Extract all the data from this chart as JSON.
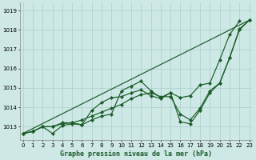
{
  "title": "Graphe pression niveau de la mer (hPa)",
  "xlabel_ticks": [
    0,
    1,
    2,
    3,
    4,
    5,
    6,
    7,
    8,
    9,
    10,
    11,
    12,
    13,
    14,
    15,
    16,
    17,
    18,
    19,
    20,
    21,
    22,
    23
  ],
  "yticks": [
    1013,
    1014,
    1015,
    1016,
    1017,
    1018,
    1019
  ],
  "ylim": [
    1012.3,
    1019.4
  ],
  "xlim": [
    -0.3,
    23.3
  ],
  "bg_color": "#cde8e5",
  "grid_color": "#aacfcc",
  "line_color": "#1a5c28",
  "line1_x": [
    0,
    1,
    2,
    3,
    4,
    5,
    6,
    7,
    8,
    9,
    10,
    11,
    12,
    13,
    14,
    15,
    16,
    17,
    18,
    19,
    20,
    21,
    22,
    23
  ],
  "line1_y": [
    1012.65,
    1012.75,
    1013.0,
    1012.65,
    1013.05,
    1013.15,
    1013.1,
    1013.35,
    1013.55,
    1013.65,
    1014.85,
    1015.1,
    1015.35,
    1014.85,
    1014.5,
    1014.75,
    1013.25,
    1013.15,
    1013.85,
    1014.75,
    1015.25,
    1016.55,
    1018.05,
    1018.5
  ],
  "line2_x": [
    0,
    1,
    2,
    3,
    4,
    5,
    6,
    7,
    8,
    9,
    10,
    11,
    12,
    13,
    14,
    15,
    16,
    17,
    18,
    19,
    20,
    21,
    22
  ],
  "line2_y": [
    1012.65,
    1012.75,
    1013.0,
    1013.0,
    1013.2,
    1013.2,
    1013.1,
    1013.85,
    1014.25,
    1014.5,
    1014.55,
    1014.75,
    1014.9,
    1014.6,
    1014.45,
    1014.75,
    1014.5,
    1014.6,
    1015.15,
    1015.25,
    1016.45,
    1017.75,
    1018.45
  ],
  "line3_x": [
    0,
    1,
    2,
    3,
    4,
    5,
    6,
    7,
    8,
    9,
    10,
    11,
    12,
    13,
    14,
    15,
    16,
    17,
    18,
    19,
    20,
    21,
    22,
    23
  ],
  "line3_y": [
    1012.65,
    1012.75,
    1013.0,
    1013.0,
    1013.15,
    1013.2,
    1013.35,
    1013.55,
    1013.75,
    1013.95,
    1014.15,
    1014.45,
    1014.65,
    1014.75,
    1014.55,
    1014.55,
    1013.65,
    1013.35,
    1013.95,
    1014.85,
    1015.25,
    1016.55,
    1018.0,
    1018.5
  ],
  "marker_style": "D",
  "marker_size": 2.2,
  "line_width": 0.85
}
